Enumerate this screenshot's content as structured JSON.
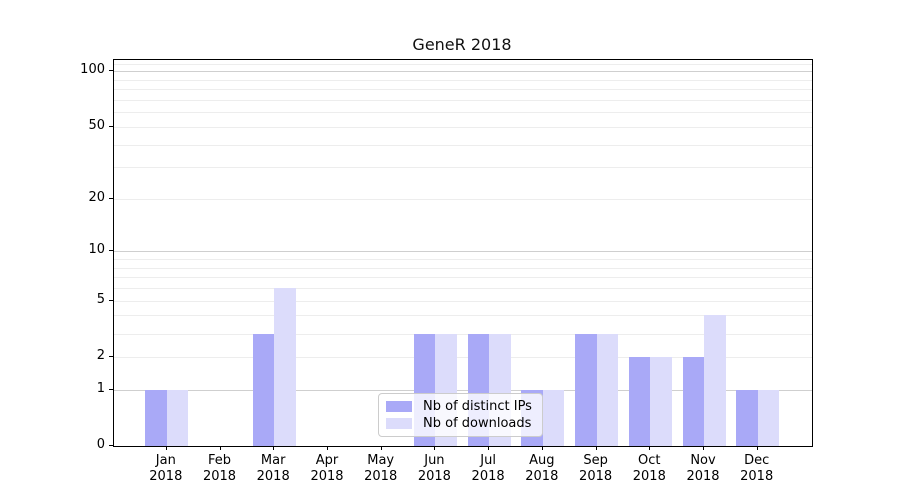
{
  "title": "GeneR 2018",
  "chart_data": {
    "type": "bar",
    "title": "GeneR 2018",
    "scale": "log10(1+y)",
    "ylim": [
      0,
      115.3
    ],
    "year": "2018",
    "categories": [
      "Jan",
      "Feb",
      "Mar",
      "Apr",
      "May",
      "Jun",
      "Jul",
      "Aug",
      "Sep",
      "Oct",
      "Nov",
      "Dec"
    ],
    "yticks": [
      100,
      50,
      20,
      10,
      5,
      2,
      1,
      0
    ],
    "gridlines": {
      "major": [
        1,
        10,
        100
      ],
      "minor": [
        2,
        3,
        4,
        5,
        6,
        7,
        8,
        9,
        20,
        30,
        40,
        50,
        60,
        70,
        80,
        90,
        110
      ]
    },
    "series": [
      {
        "name": "Nb of distinct IPs",
        "color": "#a9a9f7",
        "values": [
          1,
          0,
          3,
          0,
          0,
          3,
          3,
          1,
          3,
          2,
          2,
          1
        ]
      },
      {
        "name": "Nb of downloads",
        "color": "#dcdcfb",
        "values": [
          1,
          0,
          6,
          0,
          0,
          3,
          3,
          1,
          3,
          2,
          4,
          1
        ]
      }
    ],
    "legend_position": "bottom-center",
    "grid": "on"
  },
  "colors": {
    "grid_major": "#cfcfcf",
    "grid_minor": "#ededed",
    "axis": "#000000",
    "background": "#ffffff",
    "bar_dark": "#a9a9f7",
    "bar_light": "#dcdcfb"
  }
}
